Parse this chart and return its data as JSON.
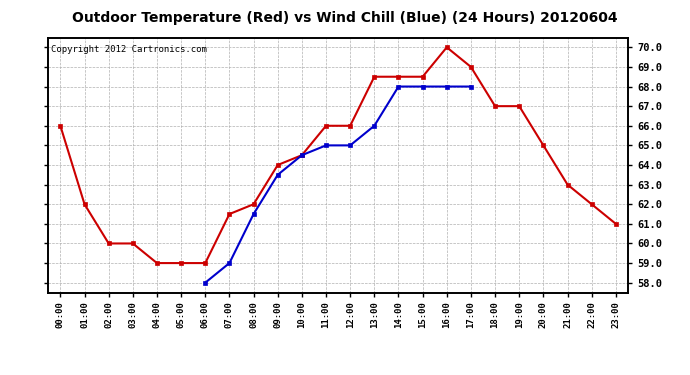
{
  "title": "Outdoor Temperature (Red) vs Wind Chill (Blue) (24 Hours) 20120604",
  "copyright": "Copyright 2012 Cartronics.com",
  "hours": [
    "00:00",
    "01:00",
    "02:00",
    "03:00",
    "04:00",
    "05:00",
    "06:00",
    "07:00",
    "08:00",
    "09:00",
    "10:00",
    "11:00",
    "12:00",
    "13:00",
    "14:00",
    "15:00",
    "16:00",
    "17:00",
    "18:00",
    "19:00",
    "20:00",
    "21:00",
    "22:00",
    "23:00"
  ],
  "temp_red": [
    66.0,
    62.0,
    60.0,
    60.0,
    59.0,
    59.0,
    59.0,
    61.5,
    62.0,
    64.0,
    64.5,
    66.0,
    66.0,
    68.5,
    68.5,
    68.5,
    70.0,
    69.0,
    67.0,
    67.0,
    65.0,
    63.0,
    62.0,
    61.0
  ],
  "wind_chill_blue": [
    null,
    null,
    null,
    null,
    null,
    null,
    58.0,
    59.0,
    61.5,
    63.5,
    64.5,
    65.0,
    65.0,
    66.0,
    68.0,
    68.0,
    68.0,
    68.0,
    null,
    null,
    null,
    null,
    null,
    null
  ],
  "ylim": [
    57.5,
    70.5
  ],
  "yticks": [
    58.0,
    59.0,
    60.0,
    61.0,
    62.0,
    63.0,
    64.0,
    65.0,
    66.0,
    67.0,
    68.0,
    69.0,
    70.0
  ],
  "red_color": "#cc0000",
  "blue_color": "#0000cc",
  "bg_color": "#ffffff",
  "grid_color": "#b0b0b0",
  "title_fontsize": 10,
  "copyright_fontsize": 6.5
}
